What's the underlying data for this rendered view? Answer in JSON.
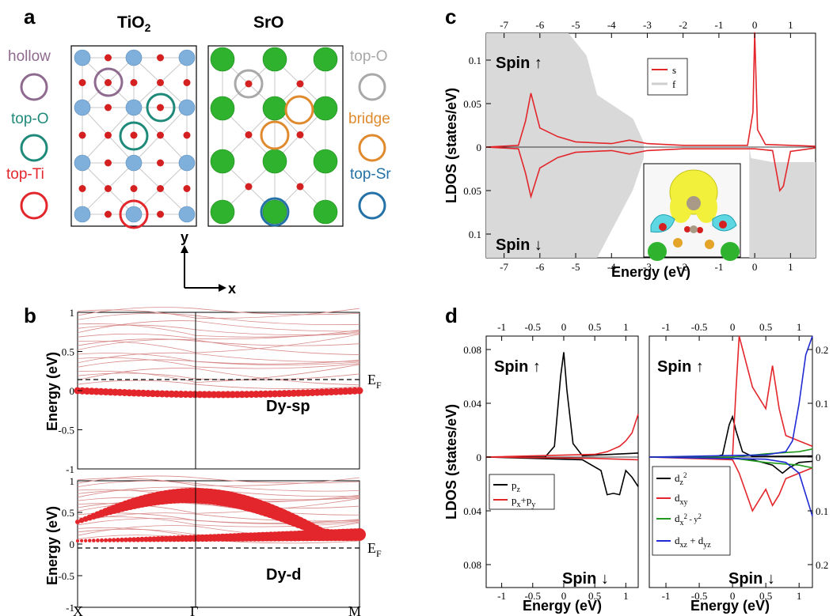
{
  "panels": {
    "a": "a",
    "b": "b",
    "c": "c",
    "d": "d"
  },
  "panel_a": {
    "tio2_title_base": "TiO",
    "tio2_title_sub": "2",
    "sro_title": "SrO",
    "left_sites": [
      {
        "label": "hollow",
        "color": "#8e6a8e"
      },
      {
        "label": "top-O",
        "color": "#1f8a7a"
      },
      {
        "label": "top-Ti",
        "color": "#e3262b"
      }
    ],
    "right_sites": [
      {
        "label": "top-O",
        "color": "#a8a8a8"
      },
      {
        "label": "bridge",
        "color": "#e08a2e"
      },
      {
        "label": "top-Sr",
        "color": "#2371a6"
      }
    ],
    "axis_y": "y",
    "axis_x": "x",
    "atom_colors": {
      "Ti": "#7fb0dc",
      "O": "#d42020",
      "Sr": "#2fb32f"
    }
  },
  "panel_b": {
    "ylabel": "Energy (eV)",
    "ef_base": "E",
    "ef_sub": "F",
    "kpoints": [
      "X",
      "Γ",
      "M"
    ],
    "yticks": [
      "1",
      "0.5",
      "0",
      "-0.5",
      "-1"
    ],
    "subplots": [
      {
        "label": "Dy-sp"
      },
      {
        "label": "Dy-d"
      }
    ]
  },
  "panel_c": {
    "ylabel": "LDOS (states/eV)",
    "xlabel": "Energy (eV)",
    "top_ticks": [
      "-7",
      "-6",
      "-5",
      "-4",
      "-3",
      "-2",
      "-1",
      "0",
      "1"
    ],
    "bottom_ticks": [
      "-7",
      "-6",
      "-5",
      "-4",
      "-3",
      "-2",
      "-1",
      "0",
      "1"
    ],
    "y_up_ticks": [
      "0.1",
      "0.05",
      "0"
    ],
    "y_down_ticks": [
      "0.05",
      "0.1"
    ],
    "spin_up": "Spin ↑",
    "spin_down": "Spin ↓",
    "legend": [
      {
        "name": "s",
        "color": "#e3262b"
      },
      {
        "name": "f",
        "color": "#cfcfcf"
      }
    ]
  },
  "panel_d": {
    "ylabel": "LDOS (states/eV)",
    "xlabel_left": "Energy (eV)",
    "xlabel_right": "Energy (eV)",
    "top_ticks": [
      "-1",
      "-0.5",
      "0",
      "0.5",
      "1"
    ],
    "bottom_ticks": [
      "-1",
      "-0.5",
      "0",
      "0.5",
      "1"
    ],
    "left_y_ticks": [
      "0.08",
      "0.04",
      "0",
      "0.04",
      "0.08"
    ],
    "right_y_ticks": [
      "0.2",
      "0.1",
      "0",
      "0.1",
      "0.2"
    ],
    "spin_up": "Spin ↑",
    "spin_down": "Spin ↓",
    "legend_left": [
      {
        "name": "p",
        "sub": "z",
        "color": "#000000"
      },
      {
        "name": "p",
        "sub": "x",
        "mid": "+p",
        "sub2": "y",
        "color": "#e3262b"
      }
    ],
    "legend_right": [
      {
        "name": "d",
        "sub": "z",
        "sup": "2",
        "color": "#000000"
      },
      {
        "name": "d",
        "sub": "xy",
        "color": "#e3262b"
      },
      {
        "name": "d",
        "sub": "x",
        "sup": "2",
        "mid": " - y",
        "sup2": "2",
        "color": "#1f9a1f"
      },
      {
        "name": "d",
        "sub": "xz",
        "mid": " + d",
        "sub2": "yz",
        "color": "#1f2ad4"
      }
    ]
  },
  "chart_data": [
    {
      "type": "line",
      "panel": "b-top",
      "title": "",
      "xlabel": "",
      "ylabel": "Energy (eV)",
      "categories": [
        "X",
        "Γ",
        "M"
      ],
      "ylim": [
        -1,
        1
      ],
      "series": [
        {
          "name": "Dy-sp",
          "values": [
            0.0,
            -0.05,
            0.0
          ]
        }
      ]
    },
    {
      "type": "line",
      "panel": "b-bottom",
      "title": "",
      "xlabel": "",
      "ylabel": "Energy (eV)",
      "categories": [
        "X",
        "Γ",
        "M"
      ],
      "ylim": [
        -1,
        1
      ],
      "series": [
        {
          "name": "Dy-d",
          "values": [
            0.35,
            0.85,
            0.15
          ]
        }
      ]
    },
    {
      "type": "line",
      "panel": "c",
      "title": "",
      "xlabel": "Energy (eV)",
      "ylabel": "LDOS (states/eV)",
      "xlim": [
        -7.5,
        1.7
      ],
      "series": [
        {
          "name": "s",
          "spin": "up",
          "x": [
            -7.5,
            -6.6,
            -6.4,
            -6.25,
            -6.0,
            -5.5,
            -5.0,
            -4.0,
            -3.5,
            -3.0,
            -2.0,
            -1.0,
            -0.2,
            -0.05,
            0.0,
            0.08,
            0.3,
            1.0,
            1.7
          ],
          "y": [
            0,
            0.002,
            0.03,
            0.062,
            0.022,
            0.012,
            0.006,
            0.004,
            0.008,
            0.004,
            0.002,
            0.002,
            0.002,
            0.04,
            0.132,
            0.02,
            0.003,
            0.002,
            0.001
          ]
        },
        {
          "name": "s",
          "spin": "down",
          "x": [
            -7.5,
            -6.6,
            -6.4,
            -6.25,
            -6.0,
            -5.5,
            -5.0,
            -4.0,
            -3.5,
            -3.0,
            -2.0,
            -1.0,
            0.0,
            0.5,
            0.7,
            0.8,
            1.0,
            1.7
          ],
          "y": [
            0,
            0.002,
            0.03,
            0.057,
            0.024,
            0.012,
            0.006,
            0.004,
            0.008,
            0.004,
            0.002,
            0.002,
            0.002,
            0.004,
            0.05,
            0.045,
            0.005,
            0.001
          ]
        }
      ]
    },
    {
      "type": "line",
      "panel": "d-left",
      "title": "",
      "xlabel": "Energy (eV)",
      "ylabel": "LDOS (states/eV)",
      "xlim": [
        -1.25,
        1.2
      ],
      "series": [
        {
          "name": "p_z",
          "spin": "up",
          "x": [
            -1.25,
            -0.3,
            -0.15,
            -0.05,
            0.0,
            0.05,
            0.15,
            0.3,
            1.2
          ],
          "y": [
            0,
            0.0,
            0.008,
            0.06,
            0.078,
            0.05,
            0.01,
            0.001,
            0.003
          ]
        },
        {
          "name": "p_z",
          "spin": "down",
          "x": [
            -1.25,
            0.3,
            0.6,
            0.7,
            0.8,
            0.9,
            1.0,
            1.1,
            1.2
          ],
          "y": [
            0,
            0.002,
            0.01,
            0.028,
            0.027,
            0.028,
            0.01,
            0.015,
            0.022
          ]
        },
        {
          "name": "p_x+p_y",
          "spin": "up",
          "x": [
            -1.25,
            0.5,
            0.7,
            0.8,
            0.9,
            1.0,
            1.1,
            1.2
          ],
          "y": [
            0,
            0.002,
            0.004,
            0.006,
            0.008,
            0.012,
            0.018,
            0.032
          ]
        },
        {
          "name": "p_x+p_y",
          "spin": "down",
          "x": [
            -1.25,
            0.5,
            1.2
          ],
          "y": [
            0,
            0.001,
            0.002
          ]
        }
      ]
    },
    {
      "type": "line",
      "panel": "d-right",
      "title": "",
      "xlabel": "Energy (eV)",
      "ylabel": "",
      "xlim": [
        -1.25,
        1.2
      ],
      "series": [
        {
          "name": "d_z2",
          "spin": "up",
          "x": [
            -1.25,
            -0.3,
            -0.15,
            -0.05,
            0.0,
            0.05,
            0.15,
            0.3,
            1.2
          ],
          "y": [
            0,
            0.0,
            0.004,
            0.06,
            0.075,
            0.05,
            0.01,
            0.001,
            0.002
          ]
        },
        {
          "name": "d_xy",
          "spin": "up",
          "x": [
            -1.25,
            0.0,
            0.05,
            0.1,
            0.3,
            0.5,
            0.6,
            0.7,
            0.8,
            1.0,
            1.2
          ],
          "y": [
            0,
            0.0,
            0.12,
            0.24,
            0.13,
            0.09,
            0.17,
            0.09,
            0.04,
            0.03,
            0.02
          ]
        },
        {
          "name": "d_x2-y2",
          "spin": "up",
          "x": [
            -1.25,
            0.0,
            0.5,
            1.0,
            1.2
          ],
          "y": [
            0,
            0.0,
            0.006,
            0.01,
            0.015
          ]
        },
        {
          "name": "d_xz+d_yz",
          "spin": "up",
          "x": [
            -1.25,
            0.5,
            0.8,
            0.9,
            1.0,
            1.1,
            1.2
          ],
          "y": [
            0,
            0.004,
            0.01,
            0.03,
            0.1,
            0.19,
            0.24
          ]
        },
        {
          "name": "d_z2",
          "spin": "down",
          "x": [
            -1.25,
            0.0,
            0.3,
            0.6,
            0.75,
            0.85,
            1.0,
            1.2
          ],
          "y": [
            0,
            0.002,
            0.005,
            0.015,
            0.03,
            0.02,
            0.01,
            0.008
          ]
        },
        {
          "name": "d_xy",
          "spin": "down",
          "x": [
            -1.25,
            0.0,
            0.1,
            0.3,
            0.5,
            0.6,
            0.7,
            0.8,
            1.0,
            1.2
          ],
          "y": [
            0,
            0.005,
            0.03,
            0.1,
            0.06,
            0.09,
            0.07,
            0.04,
            0.03,
            0.02
          ]
        },
        {
          "name": "d_x2-y2",
          "spin": "down",
          "x": [
            -1.25,
            0.0,
            0.5,
            1.0,
            1.2
          ],
          "y": [
            0,
            0.002,
            0.01,
            0.015,
            0.02
          ]
        },
        {
          "name": "d_xz+d_yz",
          "spin": "down",
          "x": [
            -1.25,
            0.5,
            0.8,
            1.0,
            1.1,
            1.2
          ],
          "y": [
            0,
            0.004,
            0.01,
            0.03,
            0.07,
            0.11
          ]
        }
      ]
    }
  ]
}
